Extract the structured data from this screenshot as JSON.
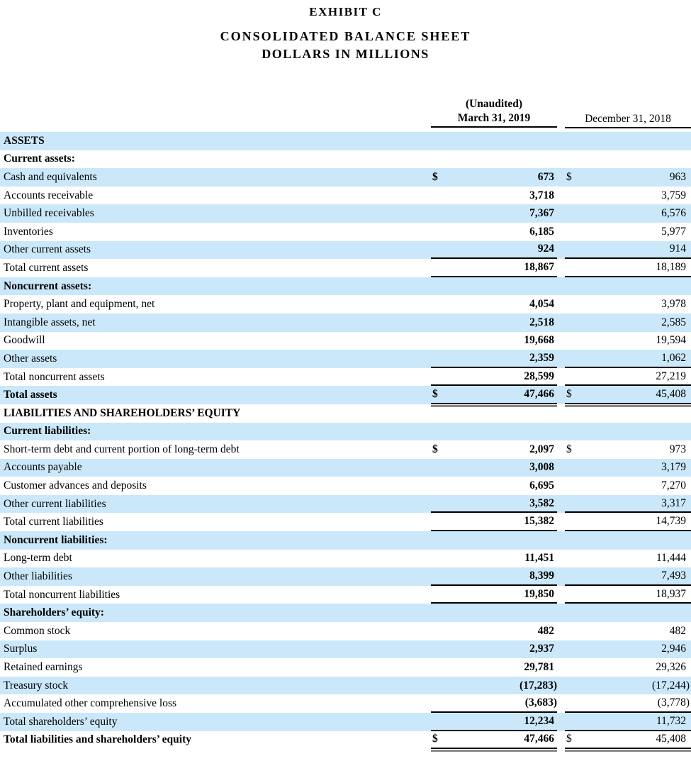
{
  "header": {
    "exhibit": "EXHIBIT C",
    "title": "CONSOLIDATED BALANCE SHEET",
    "subtitle": "DOLLARS IN MILLIONS"
  },
  "columns": {
    "unaudited_note": "(Unaudited)",
    "col1": "March 31, 2019",
    "col2": "December 31, 2018"
  },
  "colors": {
    "row_highlight": "#cbe8fa",
    "rule_black": "#000000",
    "rule_gray": "#8a8a8a"
  },
  "rows": [
    {
      "label": "ASSETS",
      "bold": true
    },
    {
      "label": "Current assets:",
      "bold": true
    },
    {
      "label": "Cash and equivalents",
      "d1": "$",
      "v1": "673",
      "d2": "$",
      "v2": "963"
    },
    {
      "label": "Accounts receivable",
      "v1": "3,718",
      "v2": "3,759"
    },
    {
      "label": "Unbilled receivables",
      "v1": "7,367",
      "v2": "6,576"
    },
    {
      "label": "Inventories",
      "v1": "6,185",
      "v2": "5,977"
    },
    {
      "label": "Other current assets",
      "v1": "924",
      "v2": "914",
      "u": 1
    },
    {
      "label": "Total current assets",
      "v1": "18,867",
      "v2": "18,189",
      "u": 1
    },
    {
      "label": "Noncurrent assets:",
      "bold": true
    },
    {
      "label": "Property, plant and equipment, net",
      "v1": "4,054",
      "v2": "3,978"
    },
    {
      "label": "Intangible assets, net",
      "v1": "2,518",
      "v2": "2,585"
    },
    {
      "label": "Goodwill",
      "v1": "19,668",
      "v2": "19,594"
    },
    {
      "label": "Other assets",
      "v1": "2,359",
      "v2": "1,062",
      "u": 1
    },
    {
      "label": "Total noncurrent assets",
      "v1": "28,599",
      "v2": "27,219",
      "u": 1
    },
    {
      "label": "Total assets",
      "bold": true,
      "d1": "$",
      "v1": "47,466",
      "d2": "$",
      "v2": "45,408",
      "u": 2
    },
    {
      "label": "LIABILITIES AND SHAREHOLDERS’ EQUITY",
      "bold": true
    },
    {
      "label": "Current liabilities:",
      "bold": true
    },
    {
      "label": "Short-term debt and current portion of long-term debt",
      "d1": "$",
      "v1": "2,097",
      "d2": "$",
      "v2": "973"
    },
    {
      "label": "Accounts payable",
      "v1": "3,008",
      "v2": "3,179"
    },
    {
      "label": "Customer advances and deposits",
      "v1": "6,695",
      "v2": "7,270"
    },
    {
      "label": "Other current liabilities",
      "v1": "3,582",
      "v2": "3,317",
      "u": 1
    },
    {
      "label": "Total current liabilities",
      "v1": "15,382",
      "v2": "14,739",
      "u": 1
    },
    {
      "label": "Noncurrent liabilities:",
      "bold": true
    },
    {
      "label": "Long-term debt",
      "v1": "11,451",
      "v2": "11,444"
    },
    {
      "label": "Other liabilities",
      "v1": "8,399",
      "v2": "7,493",
      "u": 1
    },
    {
      "label": "Total noncurrent liabilities",
      "v1": "19,850",
      "v2": "18,937",
      "u": 1
    },
    {
      "label": "Shareholders’ equity:",
      "bold": true
    },
    {
      "label": "Common stock",
      "v1": "482",
      "v2": "482"
    },
    {
      "label": "Surplus",
      "v1": "2,937",
      "v2": "2,946"
    },
    {
      "label": "Retained earnings",
      "v1": "29,781",
      "v2": "29,326"
    },
    {
      "label": "Treasury stock",
      "v1": "(17,283)",
      "v2": "(17,244)"
    },
    {
      "label": "Accumulated other comprehensive loss",
      "v1": "(3,683)",
      "v2": "(3,778)",
      "u": 1
    },
    {
      "label": "Total shareholders’ equity",
      "v1": "12,234",
      "v2": "11,732",
      "u": 1
    },
    {
      "label": "Total liabilities and shareholders’ equity",
      "bold": true,
      "d1": "$",
      "v1": "47,466",
      "d2": "$",
      "v2": "45,408",
      "u": 2
    }
  ]
}
